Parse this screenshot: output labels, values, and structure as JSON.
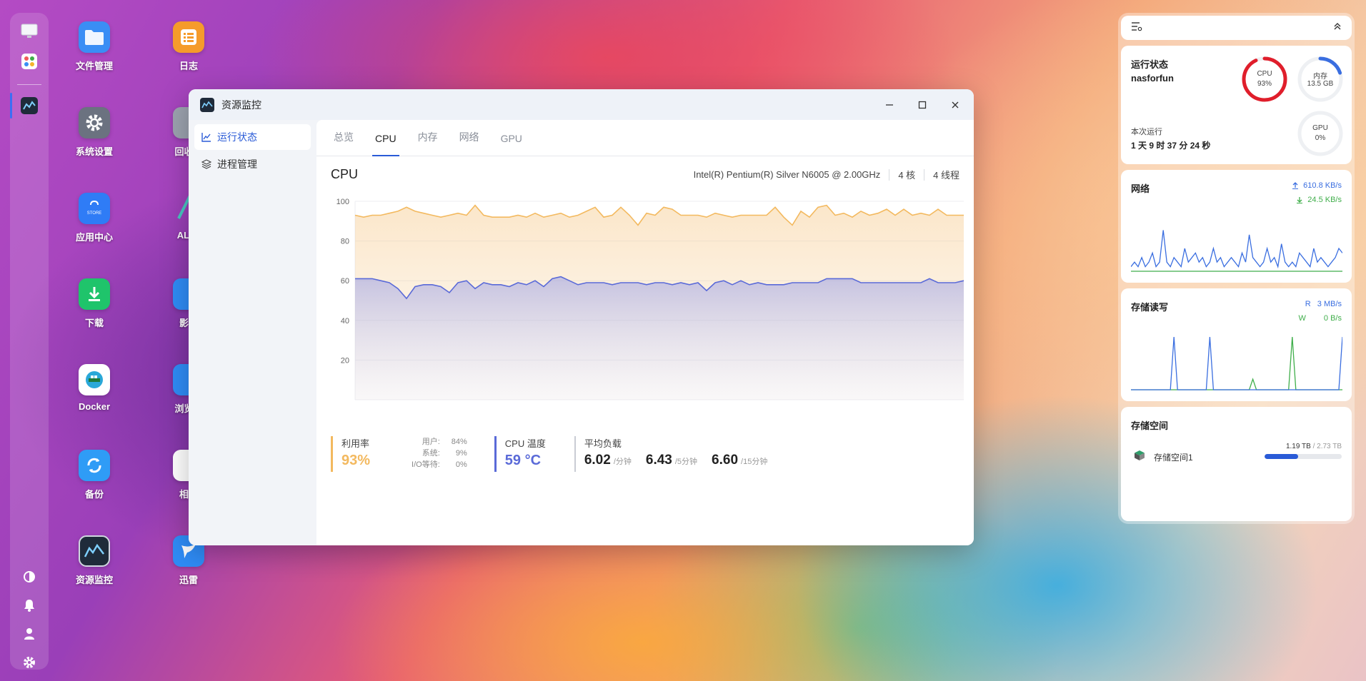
{
  "rail": {
    "icons": [
      "monitor-icon",
      "apps-icon",
      "resource-monitor-icon",
      "theme-icon",
      "bell-icon",
      "user-icon",
      "gear-icon"
    ]
  },
  "desktop": {
    "icons": [
      {
        "label": "文件管理",
        "icon": "folder-icon",
        "color": "#3a8ef5"
      },
      {
        "label": "日志",
        "icon": "log-icon",
        "color": "#f59b2b"
      },
      {
        "label": "系统设置",
        "icon": "gear-icon",
        "color": "#6b7280"
      },
      {
        "label": "回收站",
        "icon": "trash-icon",
        "color": "#9ca3af"
      },
      {
        "label": "应用中心",
        "icon": "store-icon",
        "color": "#2f7cf6"
      },
      {
        "label": "AList",
        "icon": "alist-icon",
        "color": "#48c7c0"
      },
      {
        "label": "下载",
        "icon": "download-icon",
        "color": "#1fc46b"
      },
      {
        "label": "影视",
        "icon": "video-icon",
        "color": "#2f8cf6"
      },
      {
        "label": "Docker",
        "icon": "docker-icon",
        "color": "#ffffff"
      },
      {
        "label": "浏览器",
        "icon": "browser-icon",
        "color": "#2f8cf6"
      },
      {
        "label": "备份",
        "icon": "backup-icon",
        "color": "#2f9cf6"
      },
      {
        "label": "相册",
        "icon": "photos-icon",
        "color": "#ffffff"
      },
      {
        "label": "资源监控",
        "icon": "resource-monitor-icon",
        "color": "#1f2b3a"
      },
      {
        "label": "迅雷",
        "icon": "thunder-icon",
        "color": "#2f8cf6"
      }
    ]
  },
  "window": {
    "title": "资源监控",
    "sidebar": [
      {
        "label": "运行状态",
        "icon": "chart-line-icon",
        "active": true
      },
      {
        "label": "进程管理",
        "icon": "layers-icon",
        "active": false
      }
    ],
    "tabs": [
      {
        "label": "总览",
        "active": false
      },
      {
        "label": "CPU",
        "active": true
      },
      {
        "label": "内存",
        "active": false
      },
      {
        "label": "网络",
        "active": false
      },
      {
        "label": "GPU",
        "active": false
      }
    ],
    "cpu": {
      "title": "CPU",
      "model": "Intel(R) Pentium(R) Silver N6005 @ 2.00GHz",
      "cores": "4 核",
      "threads": "4 线程"
    },
    "stats": {
      "usage_label": "利用率",
      "usage_value": "93%",
      "user_label": "用户:",
      "user_value": "84%",
      "system_label": "系统:",
      "system_value": "9%",
      "iowait_label": "I/O等待:",
      "iowait_value": "0%",
      "temp_label": "CPU 温度",
      "temp_value": "59 °C",
      "load_label": "平均负载",
      "load1": "6.02",
      "load1_unit": "/分钟",
      "load5": "6.43",
      "load5_unit": "/5分钟",
      "load15": "6.60",
      "load15_unit": "/15分钟"
    }
  },
  "chart_data": {
    "type": "area",
    "title": "",
    "xlabel": "",
    "ylabel": "",
    "ylim": [
      0,
      100
    ],
    "yticks": [
      20,
      40,
      60,
      80,
      100
    ],
    "grid": true,
    "colors": {
      "total": "#f3b95f",
      "user": "#5a6ad8"
    },
    "series": [
      {
        "name": "",
        "values": [
          93,
          92,
          93,
          93,
          94,
          95,
          97,
          95,
          94,
          93,
          92,
          93,
          94,
          93,
          98,
          93,
          92,
          92,
          92,
          93,
          92,
          94,
          92,
          93,
          94,
          92,
          93,
          95,
          97,
          92,
          93,
          97,
          93,
          88,
          94,
          93,
          97,
          96,
          93,
          93,
          93,
          92,
          94,
          93,
          92,
          93,
          93,
          93,
          93,
          97,
          92,
          88,
          95,
          92,
          97,
          98,
          93,
          94,
          92,
          95,
          93,
          94,
          96,
          93,
          96,
          93,
          94,
          93,
          96,
          93,
          93,
          93
        ]
      },
      {
        "name": "",
        "values": [
          61,
          61,
          61,
          60,
          59,
          56,
          51,
          57,
          58,
          58,
          57,
          54,
          59,
          60,
          56,
          59,
          58,
          58,
          57,
          59,
          58,
          60,
          57,
          61,
          62,
          60,
          58,
          59,
          59,
          59,
          58,
          59,
          59,
          59,
          58,
          59,
          59,
          58,
          59,
          58,
          59,
          55,
          59,
          60,
          58,
          60,
          58,
          59,
          58,
          58,
          58,
          59,
          59,
          59,
          59,
          61,
          61,
          61,
          61,
          59,
          59,
          59,
          59,
          59,
          59,
          59,
          59,
          61,
          59,
          59,
          59,
          60
        ]
      }
    ]
  },
  "widgets": {
    "header_icons": [
      "settings-list-icon",
      "collapse-icon"
    ],
    "status": {
      "title": "运行状态",
      "host": "nasforfun",
      "cpu_label": "CPU",
      "cpu_value": "93%",
      "cpu_pct": 0.93,
      "mem_label": "内存",
      "mem_value": "13.5 GB",
      "mem_pct": 0.2,
      "gpu_label": "GPU",
      "gpu_value": "0%",
      "gpu_pct": 0,
      "uptime_label": "本次运行",
      "uptime_value": "1 天 9 时 37 分 24 秒"
    },
    "network": {
      "title": "网络",
      "up": "610.8 KB/s",
      "down": "24.5 KB/s",
      "upload_color": "#3a6ee0",
      "download_color": "#3fae4a",
      "up_series": [
        1,
        2,
        1,
        3,
        1,
        2,
        4,
        1,
        2,
        9,
        2,
        1,
        3,
        2,
        1,
        5,
        2,
        3,
        4,
        2,
        3,
        1,
        2,
        5,
        2,
        3,
        1,
        2,
        3,
        2,
        1,
        4,
        2,
        8,
        3,
        2,
        1,
        2,
        5,
        2,
        3,
        1,
        6,
        2,
        1,
        2,
        1,
        4,
        3,
        2,
        1,
        5,
        2,
        3,
        2,
        1,
        2,
        3,
        5,
        4
      ],
      "down_series": [
        0,
        0,
        0,
        0,
        0,
        0,
        0,
        0,
        0,
        0,
        0,
        0,
        0,
        0,
        0,
        0,
        0,
        0,
        0,
        0,
        0,
        0,
        0,
        0,
        0,
        0,
        0,
        0,
        0,
        0,
        0,
        0,
        0,
        0,
        0,
        0,
        0,
        0,
        0,
        0,
        0,
        0,
        0,
        0,
        0,
        0,
        0,
        0,
        0,
        0,
        0,
        0,
        0,
        0,
        0,
        0,
        0,
        0,
        0,
        0
      ]
    },
    "storage_io": {
      "title": "存储读写",
      "read_label": "R",
      "read_value": "3 MB/s",
      "write_label": "W",
      "write_value": "0 B/s",
      "read_color": "#3a6ee0",
      "write_color": "#3fae4a",
      "read_series": [
        0,
        0,
        0,
        0,
        0,
        0,
        0,
        0,
        0,
        0,
        0,
        0,
        10,
        0,
        0,
        0,
        0,
        0,
        0,
        0,
        0,
        0,
        10,
        0,
        0,
        0,
        0,
        0,
        0,
        0,
        0,
        0,
        0,
        0,
        0,
        0,
        0,
        0,
        0,
        0,
        0,
        0,
        0,
        0,
        0,
        0,
        0,
        0,
        0,
        0,
        0,
        0,
        0,
        0,
        0,
        0,
        0,
        0,
        0,
        10
      ],
      "write_series": [
        0,
        0,
        0,
        0,
        0,
        0,
        0,
        0,
        0,
        0,
        0,
        0,
        0,
        0,
        0,
        0,
        0,
        0,
        0,
        0,
        0,
        0,
        0,
        0,
        0,
        0,
        0,
        0,
        0,
        0,
        0,
        0,
        0,
        0,
        2,
        0,
        0,
        0,
        0,
        0,
        0,
        0,
        0,
        0,
        0,
        10,
        0,
        0,
        0,
        0,
        0,
        0,
        0,
        0,
        0,
        0,
        0,
        0,
        0,
        0
      ]
    },
    "storage_space": {
      "title": "存储空间",
      "volume_label": "存储空间1",
      "used": "1.19 TB",
      "total": "2.73 TB",
      "pct": 0.436
    }
  }
}
